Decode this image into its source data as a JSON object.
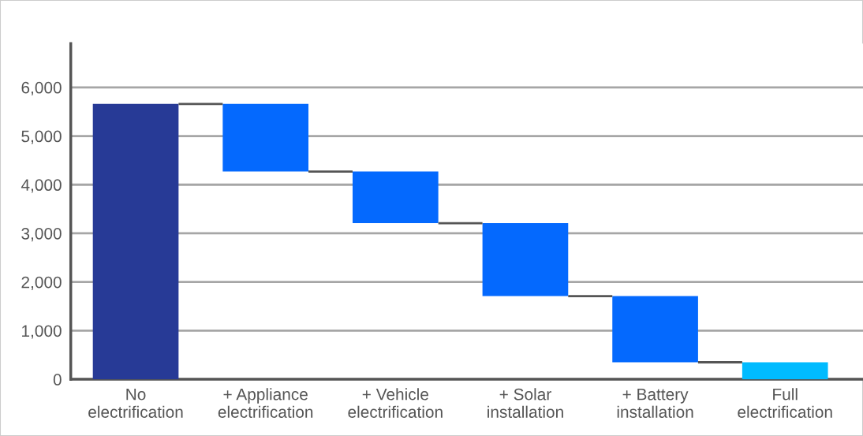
{
  "chart_data": {
    "type": "bar",
    "categories": [
      "No\nelectrification",
      "+ Appliance\nelectrification",
      "+ Vehicle\nelectrification",
      "+ Solar\ninstallation",
      "+ Battery\ninstallation",
      "Full\nelectrification"
    ],
    "values": [
      5660,
      -1390,
      -1060,
      -1500,
      -1360,
      350
    ],
    "base": [
      0,
      5660,
      4270,
      3210,
      1710,
      0
    ],
    "colors": [
      "#273a96",
      "#0469fe",
      "#0469fe",
      "#0469fe",
      "#0469fe",
      "#00bbff"
    ],
    "ylim": [
      0,
      6900
    ],
    "yticks": [
      {
        "value": 0,
        "label": "0"
      },
      {
        "value": 1000,
        "label": "1,000"
      },
      {
        "value": 2000,
        "label": "2,000"
      },
      {
        "value": 3000,
        "label": "3,000"
      },
      {
        "value": 4000,
        "label": "4,000"
      },
      {
        "value": 5000,
        "label": "5,000"
      },
      {
        "value": 6000,
        "label": "6,000"
      }
    ],
    "grid": "y"
  }
}
